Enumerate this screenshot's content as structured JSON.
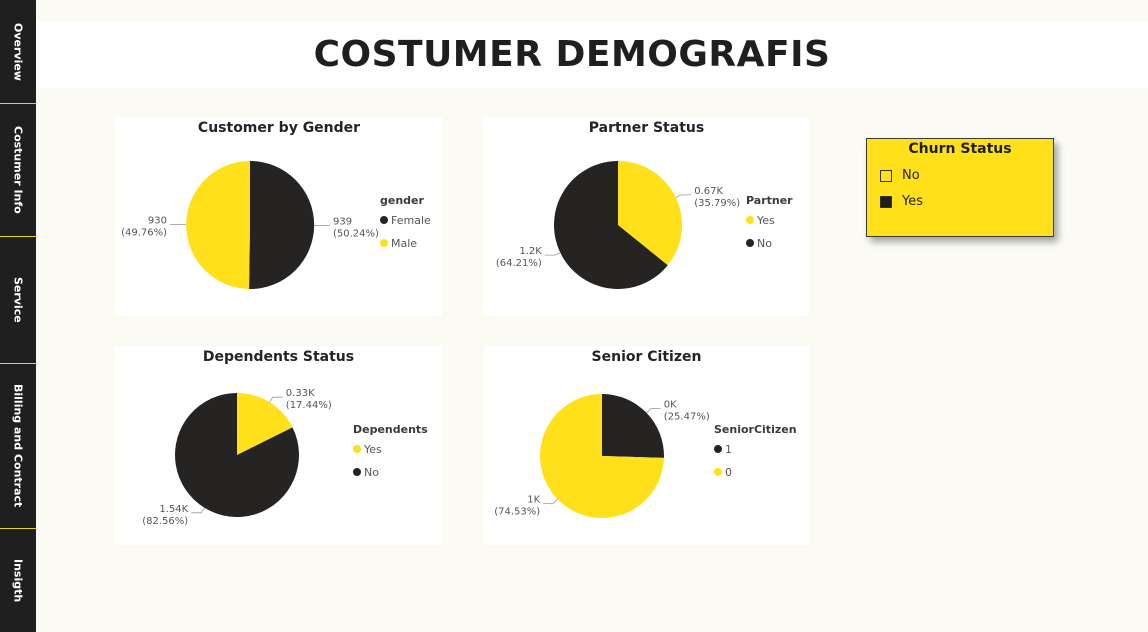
{
  "sidebar": {
    "items": [
      {
        "label": "Overview"
      },
      {
        "label": "Costumer Info"
      },
      {
        "label": "Service"
      },
      {
        "label": "Billing and Contract"
      },
      {
        "label": "Insigth"
      }
    ]
  },
  "header": {
    "title": "COSTUMER DEMOGRAFIS"
  },
  "slicer": {
    "title": "Churn Status",
    "options": [
      {
        "label": "No",
        "checked": false
      },
      {
        "label": "Yes",
        "checked": true
      }
    ]
  },
  "colors": {
    "dark": "#252423",
    "yellow": "#ffe01b",
    "panel": "#ffffff",
    "background": "#fbfbf4"
  },
  "chart_data": [
    {
      "type": "pie",
      "title": "Customer by Gender",
      "legend_title": "gender",
      "legend": [
        {
          "label": "Female",
          "color": "#252423"
        },
        {
          "label": "Male",
          "color": "#ffe01b"
        }
      ],
      "slices": [
        {
          "label": "Female",
          "value": 939,
          "value_label": "939",
          "percent_label": "(50.24%)",
          "color": "#252423"
        },
        {
          "label": "Male",
          "value": 930,
          "value_label": "930",
          "percent_label": "(49.76%)",
          "color": "#ffe01b"
        }
      ]
    },
    {
      "type": "pie",
      "title": "Partner Status",
      "legend_title": "Partner",
      "legend": [
        {
          "label": "Yes",
          "color": "#ffe01b"
        },
        {
          "label": "No",
          "color": "#252423"
        }
      ],
      "slices": [
        {
          "label": "Yes",
          "value": 670,
          "value_label": "0.67K",
          "percent_label": "(35.79%)",
          "color": "#ffe01b"
        },
        {
          "label": "No",
          "value": 1200,
          "value_label": "1.2K",
          "percent_label": "(64.21%)",
          "color": "#252423"
        }
      ]
    },
    {
      "type": "pie",
      "title": "Dependents Status",
      "legend_title": "Dependents",
      "legend": [
        {
          "label": "Yes",
          "color": "#ffe01b"
        },
        {
          "label": "No",
          "color": "#252423"
        }
      ],
      "slices": [
        {
          "label": "Yes",
          "value": 330,
          "value_label": "0.33K",
          "percent_label": "(17.44%)",
          "color": "#ffe01b"
        },
        {
          "label": "No",
          "value": 1540,
          "value_label": "1.54K",
          "percent_label": "(82.56%)",
          "color": "#252423"
        }
      ]
    },
    {
      "type": "pie",
      "title": "Senior Citizen",
      "legend_title": "SeniorCitizen",
      "legend": [
        {
          "label": "1",
          "color": "#252423"
        },
        {
          "label": "0",
          "color": "#ffe01b"
        }
      ],
      "slices": [
        {
          "label": "1",
          "value": 476,
          "value_label": "0K",
          "percent_label": "(25.47%)",
          "color": "#252423"
        },
        {
          "label": "0",
          "value": 1393,
          "value_label": "1K",
          "percent_label": "(74.53%)",
          "color": "#ffe01b"
        }
      ]
    }
  ]
}
